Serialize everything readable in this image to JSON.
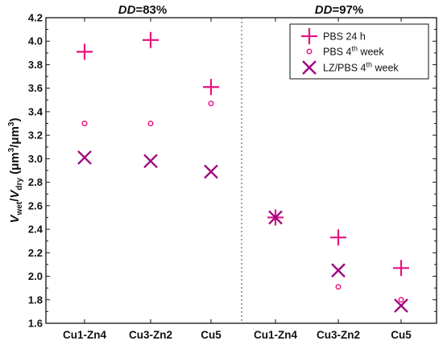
{
  "chart_data": {
    "type": "scatter",
    "panels": [
      {
        "title_italic": "DD",
        "title_rest": "=83%"
      },
      {
        "title_italic": "DD",
        "title_rest": "=97%"
      }
    ],
    "categories": [
      "Cu1-Zn4",
      "Cu3-Zn2",
      "Cu5",
      "Cu1-Zn4",
      "Cu3-Zn2",
      "Cu5"
    ],
    "ylabel": {
      "V1": "V",
      "sub1": "wet",
      "slash": "/",
      "V2": "V",
      "sub2": "dry",
      "unit_open": " (μm",
      "unit_sup1": "3",
      "unit_mid": "/μm",
      "unit_sup2": "3",
      "unit_close": ")"
    },
    "ylim": [
      1.6,
      4.2
    ],
    "yticks": [
      "1.6",
      "1.8",
      "2.0",
      "2.2",
      "2.4",
      "2.6",
      "2.8",
      "3.0",
      "3.2",
      "3.4",
      "3.6",
      "3.8",
      "4.0",
      "4.2"
    ],
    "series": [
      {
        "name_main": "PBS 24 h",
        "name_sup": "",
        "name_tail": "",
        "marker": "plus",
        "color": "#e8117f",
        "values": [
          3.91,
          4.01,
          3.61,
          2.5,
          2.33,
          2.07
        ]
      },
      {
        "name_main": "PBS 4",
        "name_sup": "th",
        "name_tail": " week",
        "marker": "circle",
        "color": "#e8117f",
        "values": [
          3.3,
          3.3,
          3.47,
          2.5,
          1.91,
          1.8
        ]
      },
      {
        "name_main": "LZ/PBS 4",
        "name_sup": "th",
        "name_tail": " week",
        "marker": "cross",
        "color": "#a0067f",
        "values": [
          3.01,
          2.98,
          2.89,
          2.5,
          2.05,
          1.75
        ]
      }
    ],
    "legend_position": "top-right",
    "separator": "dotted vertical line between panels"
  }
}
